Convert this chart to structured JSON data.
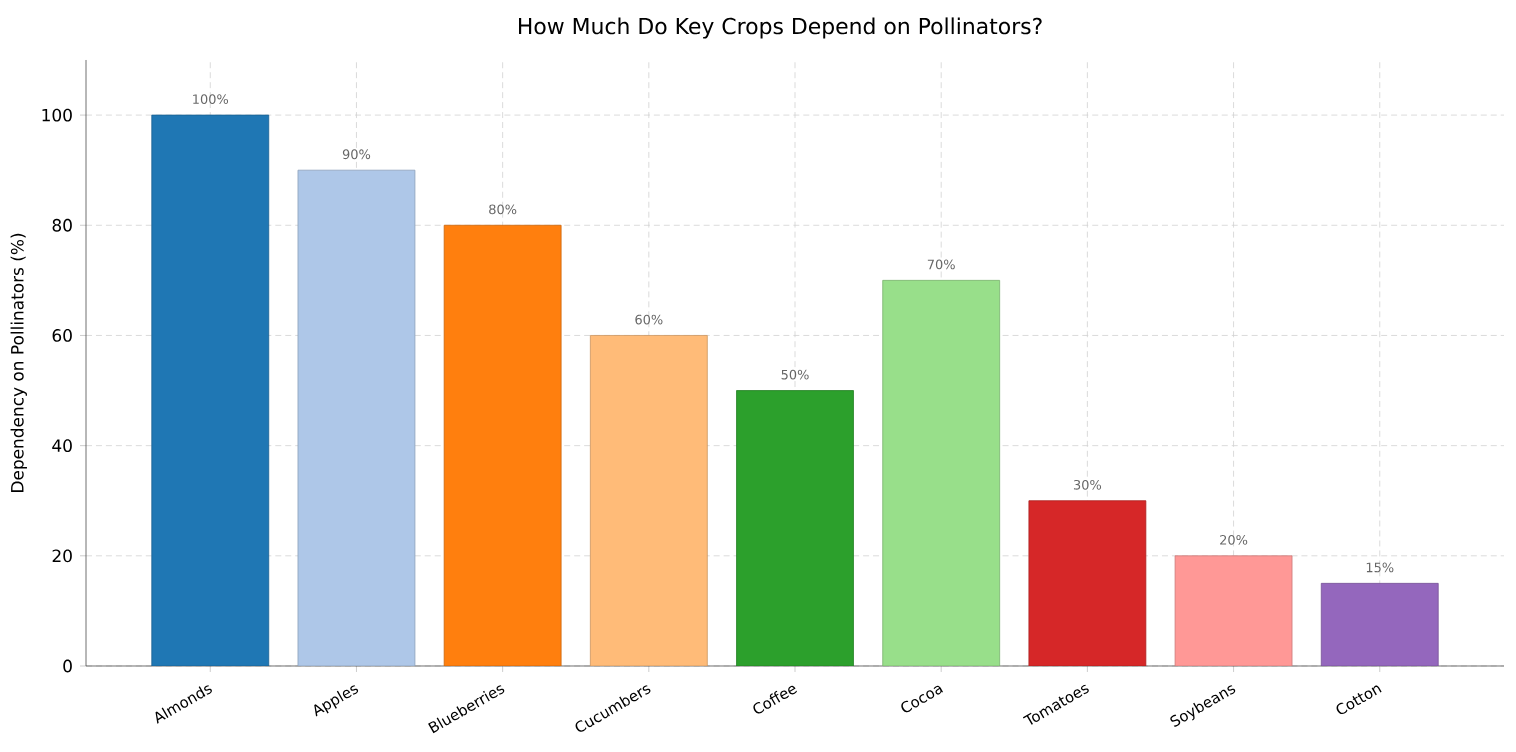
{
  "chart_data": {
    "type": "bar",
    "title": "How Much Do Key Crops Depend on Pollinators?",
    "ylabel": "Dependency on Pollinators (%)",
    "categories": [
      "Almonds",
      "Apples",
      "Blueberries",
      "Cucumbers",
      "Coffee",
      "Cocoa",
      "Tomatoes",
      "Soybeans",
      "Cotton"
    ],
    "values": [
      100,
      90,
      80,
      60,
      50,
      70,
      30,
      20,
      15
    ],
    "colors": [
      "#1f77b4",
      "#aec7e8",
      "#ff7f0e",
      "#ffbb78",
      "#2ca02c",
      "#98df8a",
      "#d62728",
      "#ff9896",
      "#9467bd"
    ],
    "value_labels": [
      "100%",
      "90%",
      "80%",
      "60%",
      "50%",
      "70%",
      "30%",
      "20%",
      "15%"
    ],
    "ylim": [
      0,
      110
    ],
    "yticks": [
      0,
      20,
      40,
      60,
      80,
      100
    ],
    "grid": true
  }
}
